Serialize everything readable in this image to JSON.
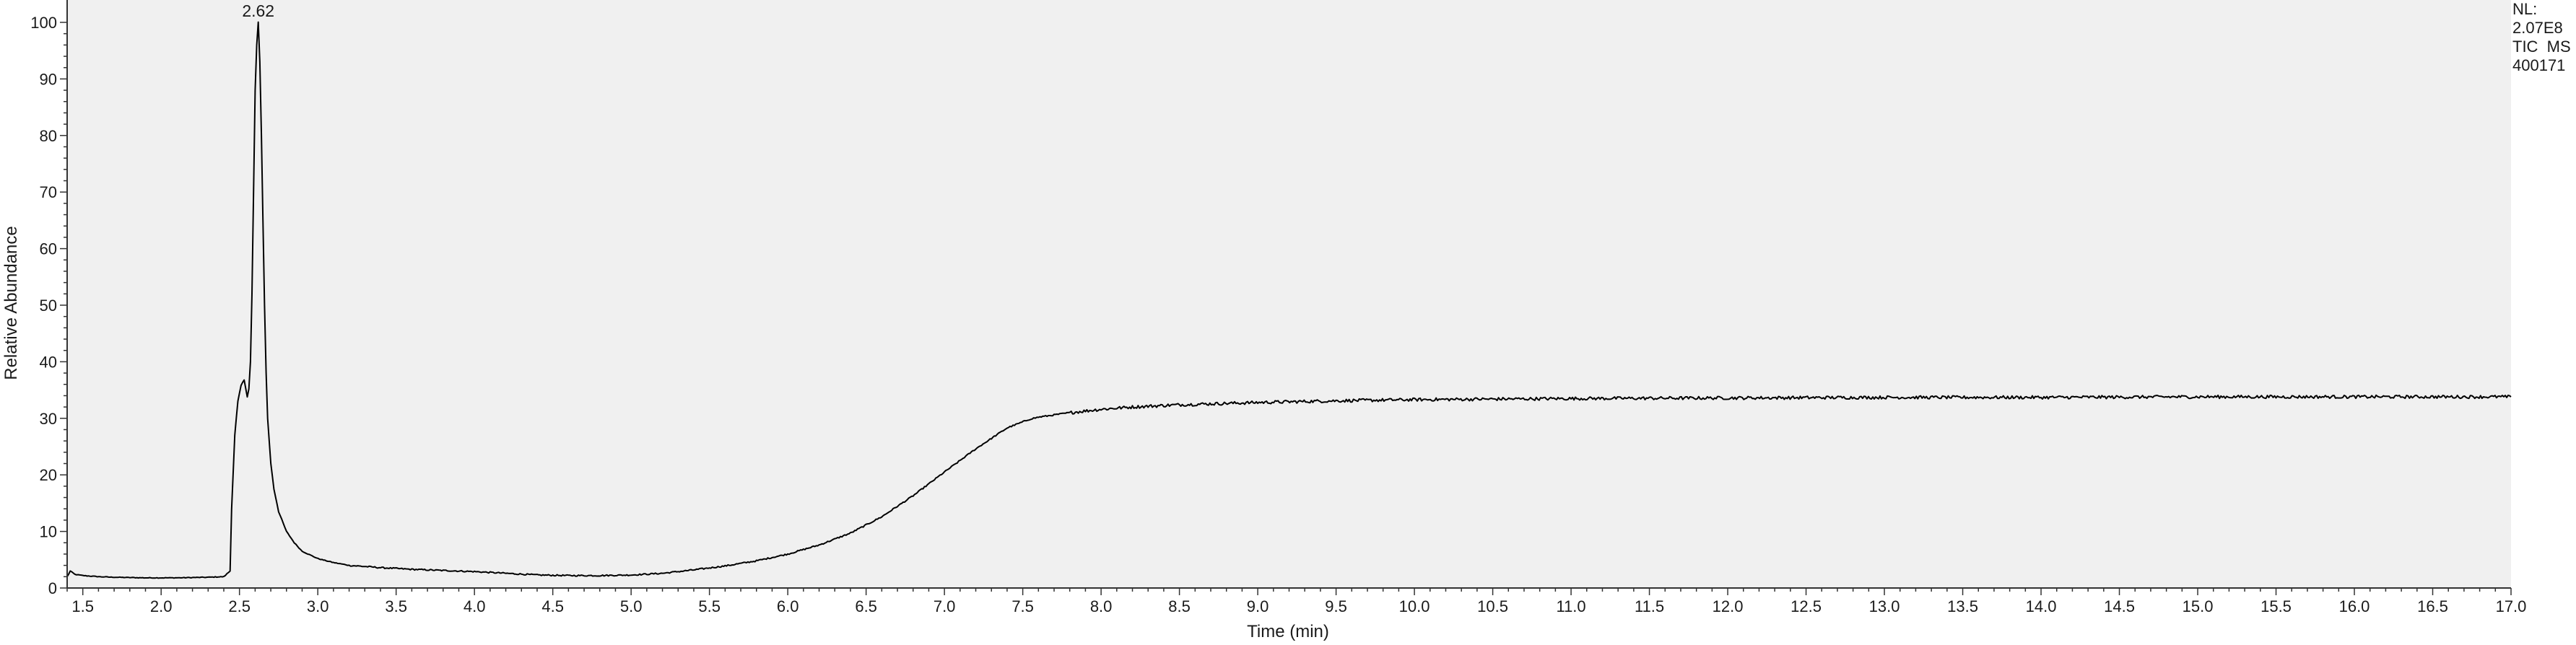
{
  "colors": {
    "plot_background": "#f0f0f0",
    "trace": "#000000",
    "axis": "#333333",
    "text": "#1a1a1a"
  },
  "chart_data": {
    "type": "line",
    "title": "",
    "xlabel": "Time (min)",
    "ylabel": "Relative Abundance",
    "xlim": [
      1.4,
      17.0
    ],
    "ylim": [
      0,
      100
    ],
    "grid": false,
    "x_ticks": [
      "1.5",
      "2.0",
      "2.5",
      "3.0",
      "3.5",
      "4.0",
      "4.5",
      "5.0",
      "5.5",
      "6.0",
      "6.5",
      "7.0",
      "7.5",
      "8.0",
      "8.5",
      "9.0",
      "9.5",
      "10.0",
      "10.5",
      "11.0",
      "11.5",
      "12.0",
      "12.5",
      "13.0",
      "13.5",
      "14.0",
      "14.5",
      "15.0",
      "15.5",
      "16.0",
      "16.5",
      "17.0"
    ],
    "y_ticks": [
      "0",
      "10",
      "20",
      "30",
      "40",
      "50",
      "60",
      "70",
      "80",
      "90",
      "100"
    ],
    "annotations": [
      {
        "text": "2.62",
        "x": 2.62,
        "y": 100
      }
    ],
    "info_labels": [
      "NL:",
      "2.07E8",
      "TIC  MS",
      "400171"
    ],
    "series": [
      {
        "x": [
          1.4,
          1.42,
          1.45,
          1.5,
          1.6,
          1.7,
          1.8,
          1.9,
          2.0,
          2.1,
          2.2,
          2.3,
          2.4,
          2.44,
          2.45,
          2.47,
          2.49,
          2.51,
          2.53,
          2.55,
          2.56,
          2.57,
          2.58,
          2.59,
          2.6,
          2.61,
          2.62,
          2.63,
          2.64,
          2.65,
          2.66,
          2.67,
          2.68,
          2.7,
          2.72,
          2.75,
          2.8,
          2.85,
          2.9,
          3.0,
          3.1,
          3.2,
          3.4,
          3.6,
          3.8,
          4.0,
          4.2,
          4.4,
          4.6,
          4.8,
          5.0,
          5.2,
          5.4,
          5.6,
          5.8,
          6.0,
          6.2,
          6.4,
          6.6,
          6.8,
          7.0,
          7.2,
          7.4,
          7.55,
          7.6,
          7.8,
          8.0,
          8.2,
          8.5,
          9.0,
          9.5,
          10.0,
          11.0,
          12.0,
          13.0,
          14.0,
          15.0,
          16.0,
          17.0
        ],
        "y": [
          2.0,
          3.0,
          2.4,
          2.2,
          2.0,
          1.9,
          1.85,
          1.8,
          1.8,
          1.8,
          1.85,
          1.9,
          2.0,
          3.0,
          14.0,
          27.0,
          33.0,
          35.8,
          36.8,
          33.8,
          35.2,
          40.0,
          52.0,
          70.0,
          88.0,
          96.0,
          100.0,
          93.0,
          80.0,
          65.0,
          50.0,
          38.0,
          30.0,
          22.0,
          17.5,
          13.5,
          10.0,
          8.0,
          6.5,
          5.2,
          4.5,
          4.0,
          3.6,
          3.3,
          3.1,
          2.9,
          2.6,
          2.3,
          2.2,
          2.2,
          2.3,
          2.6,
          3.2,
          3.9,
          4.8,
          6.0,
          7.6,
          9.7,
          12.6,
          16.3,
          20.5,
          24.6,
          28.3,
          29.9,
          30.2,
          31.0,
          31.6,
          32.0,
          32.4,
          32.8,
          33.1,
          33.3,
          33.5,
          33.6,
          33.7,
          33.7,
          33.8,
          33.8,
          33.8
        ]
      }
    ]
  }
}
